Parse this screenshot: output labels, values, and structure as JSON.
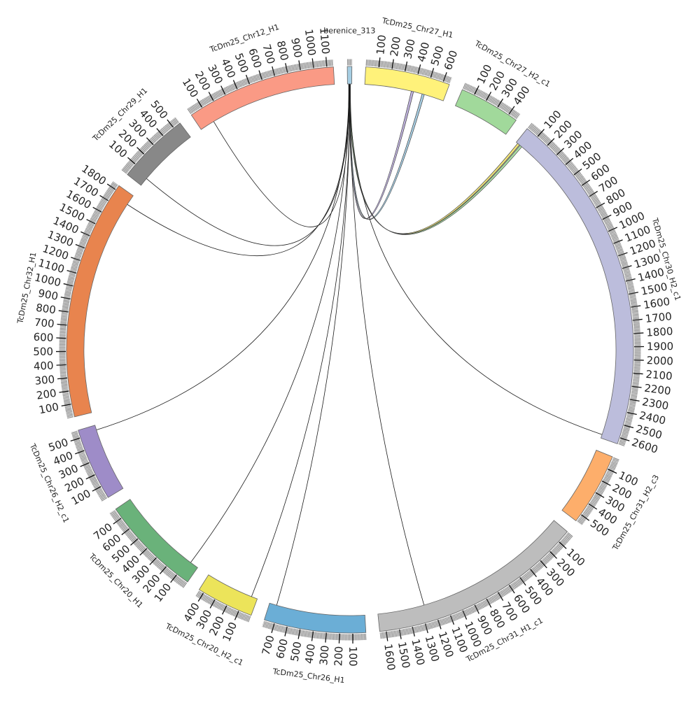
{
  "chart_data": {
    "type": "circos",
    "segments": [
      {
        "name": "berenice_313",
        "length": 35,
        "color": "#a6cee3",
        "ticks": []
      },
      {
        "name": "TcDm25_Chr27_H1",
        "length": 650,
        "color": "#fff27a",
        "ticks": [
          "100",
          "200",
          "300",
          "400",
          "500",
          "600"
        ]
      },
      {
        "name": "TcDm25_Chr27_H2_c1",
        "length": 470,
        "color": "#a1d99b",
        "ticks": [
          "100",
          "200",
          "300",
          "400"
        ]
      },
      {
        "name": "TcDm25_Chr30_H2_c1",
        "length": 2650,
        "color": "#bcbddc",
        "ticks": [
          "100",
          "200",
          "300",
          "400",
          "500",
          "600",
          "700",
          "800",
          "900",
          "1000",
          "1100",
          "1200",
          "1300",
          "1400",
          "1500",
          "1600",
          "1700",
          "1800",
          "1900",
          "2000",
          "2100",
          "2200",
          "2300",
          "2400",
          "2500",
          "2600"
        ]
      },
      {
        "name": "TcDm25_Chr31_H2_c3",
        "length": 560,
        "color": "#fdae6b",
        "ticks": [
          "100",
          "200",
          "300",
          "400",
          "500"
        ]
      },
      {
        "name": "TcDm25_Chr31_H1_c1",
        "length": 1650,
        "color": "#bdbdbd",
        "ticks": [
          "100",
          "200",
          "300",
          "400",
          "500",
          "600",
          "700",
          "800",
          "900",
          "1000",
          "1100",
          "1200",
          "1300",
          "1400",
          "1500",
          "1600"
        ]
      },
      {
        "name": "TcDm25_Chr26_H1",
        "length": 780,
        "color": "#6baed6",
        "ticks": [
          "100",
          "200",
          "300",
          "400",
          "500",
          "600",
          "700"
        ]
      },
      {
        "name": "TcDm25_Chr20_H2_c1",
        "length": 440,
        "color": "#ece45a",
        "ticks": [
          "100",
          "200",
          "300",
          "400"
        ]
      },
      {
        "name": "TcDm25_Chr20_H1",
        "length": 780,
        "color": "#6ab27a",
        "ticks": [
          "100",
          "200",
          "300",
          "400",
          "500",
          "600",
          "700"
        ]
      },
      {
        "name": "TcDm25_Chr26_H2_c1",
        "length": 560,
        "color": "#9e8cc8",
        "ticks": [
          "100",
          "200",
          "300",
          "400",
          "500"
        ]
      },
      {
        "name": "TcDm25_Chr32_H1",
        "length": 1840,
        "color": "#e8844e",
        "ticks": [
          "100",
          "200",
          "300",
          "400",
          "500",
          "600",
          "700",
          "800",
          "900",
          "1000",
          "1100",
          "1200",
          "1300",
          "1400",
          "1500",
          "1600",
          "1700",
          "1800"
        ]
      },
      {
        "name": "TcDm25_Chr29_H1",
        "length": 560,
        "color": "#888888",
        "ticks": [
          "100",
          "200",
          "300",
          "400",
          "500"
        ]
      },
      {
        "name": "TcDm25_Chr12_H1",
        "length": 1150,
        "color": "#fa9a85",
        "ticks": [
          "100",
          "200",
          "300",
          "400",
          "500",
          "600",
          "700",
          "800",
          "900",
          "1000",
          "1100"
        ]
      }
    ],
    "links": [
      {
        "from": "berenice_313",
        "to": "TcDm25_Chr27_H1",
        "pos": 380,
        "style": "ribbon",
        "color": "#b7a8d8"
      },
      {
        "from": "berenice_313",
        "to": "TcDm25_Chr27_H1",
        "pos": 470,
        "style": "ribbon",
        "color": "#9ecae1"
      },
      {
        "from": "berenice_313",
        "to": "TcDm25_Chr30_H2_c1",
        "pos": 15,
        "style": "ribbon",
        "color": "#f3e36b"
      },
      {
        "from": "berenice_313",
        "to": "TcDm25_Chr30_H2_c1",
        "pos": 40,
        "style": "ribbon",
        "color": "#a1d99b"
      },
      {
        "from": "berenice_313",
        "to": "TcDm25_Chr30_H2_c1",
        "pos": 2620,
        "style": "line"
      },
      {
        "from": "berenice_313",
        "to": "TcDm25_Chr31_H1_c1",
        "pos": 1270,
        "style": "line"
      },
      {
        "from": "berenice_313",
        "to": "TcDm25_Chr26_H1",
        "pos": 720,
        "style": "line"
      },
      {
        "from": "berenice_313",
        "to": "TcDm25_Chr20_H2_c1",
        "pos": 50,
        "style": "line"
      },
      {
        "from": "berenice_313",
        "to": "TcDm25_Chr20_H1",
        "pos": 70,
        "style": "line"
      },
      {
        "from": "berenice_313",
        "to": "TcDm25_Chr26_H2_c1",
        "pos": 520,
        "style": "line"
      },
      {
        "from": "berenice_313",
        "to": "TcDm25_Chr32_H1",
        "pos": 1755,
        "style": "line"
      },
      {
        "from": "berenice_313",
        "to": "TcDm25_Chr29_H1",
        "pos": 70,
        "style": "line"
      },
      {
        "from": "berenice_313",
        "to": "TcDm25_Chr12_H1",
        "pos": 120,
        "style": "line"
      }
    ]
  }
}
